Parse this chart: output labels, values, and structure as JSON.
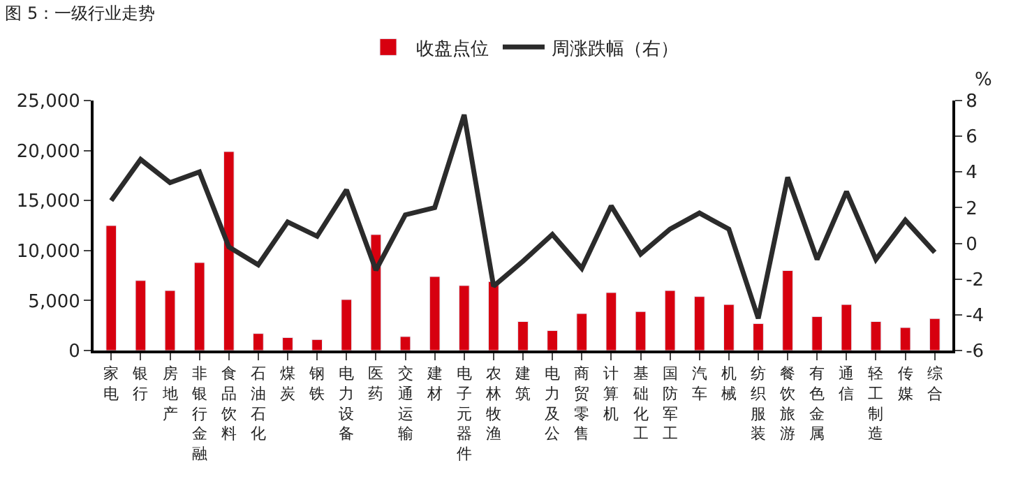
{
  "chart_data": {
    "type": "bar",
    "title": "图 5：一级行业走势",
    "y2label": "%",
    "categories": [
      "家电",
      "银行",
      "房地产",
      "非银行金融",
      "食品饮料",
      "石油石化",
      "煤炭",
      "钢铁",
      "电力设备",
      "医药",
      "交通运输",
      "建材",
      "电子元器件",
      "农林牧渔",
      "建筑",
      "电力及公",
      "商贸零售",
      "计算机",
      "基础化工",
      "国防军工",
      "汽车",
      "机械",
      "纺织服装",
      "餐饮旅游",
      "有色金属",
      "通信",
      "轻工制造",
      "传媒",
      "综合"
    ],
    "series": [
      {
        "name": "收盘点位",
        "color": "#d7000f",
        "values": [
          12500,
          7000,
          6000,
          8800,
          19900,
          1700,
          1300,
          1100,
          5100,
          11600,
          1400,
          7400,
          6500,
          6900,
          2900,
          2000,
          3700,
          5800,
          3900,
          6000,
          5400,
          4600,
          2700,
          8000,
          3400,
          4600,
          2900,
          2300,
          3200
        ]
      },
      {
        "name": "周涨跌幅（右）",
        "type": "line",
        "axis": "y2",
        "color": "#2b2b2b",
        "values": [
          2.4,
          4.7,
          3.4,
          4.0,
          -0.2,
          -1.2,
          1.2,
          0.4,
          3.0,
          -1.5,
          1.6,
          2.0,
          7.2,
          -2.4,
          -1.0,
          0.5,
          -1.4,
          2.1,
          -0.6,
          0.8,
          1.7,
          0.8,
          -4.2,
          3.7,
          -0.9,
          2.9,
          -0.9,
          1.3,
          -0.5
        ]
      }
    ],
    "ylim": [
      0,
      25000
    ],
    "yticks": [
      0,
      {
        "value": 5000,
        "label": "5,000"
      },
      {
        "value": 10000,
        "label": "10,000"
      },
      {
        "value": 15000,
        "label": "15,000"
      },
      {
        "value": 20000,
        "label": "20,000"
      },
      {
        "value": 25000,
        "label": "25,000"
      }
    ],
    "y2lim": [
      -6,
      8
    ],
    "y2ticks": [
      -6,
      -4,
      -2,
      0,
      2,
      4,
      6,
      8
    ],
    "legend": "top",
    "marker": "none",
    "line_style": "solid"
  }
}
